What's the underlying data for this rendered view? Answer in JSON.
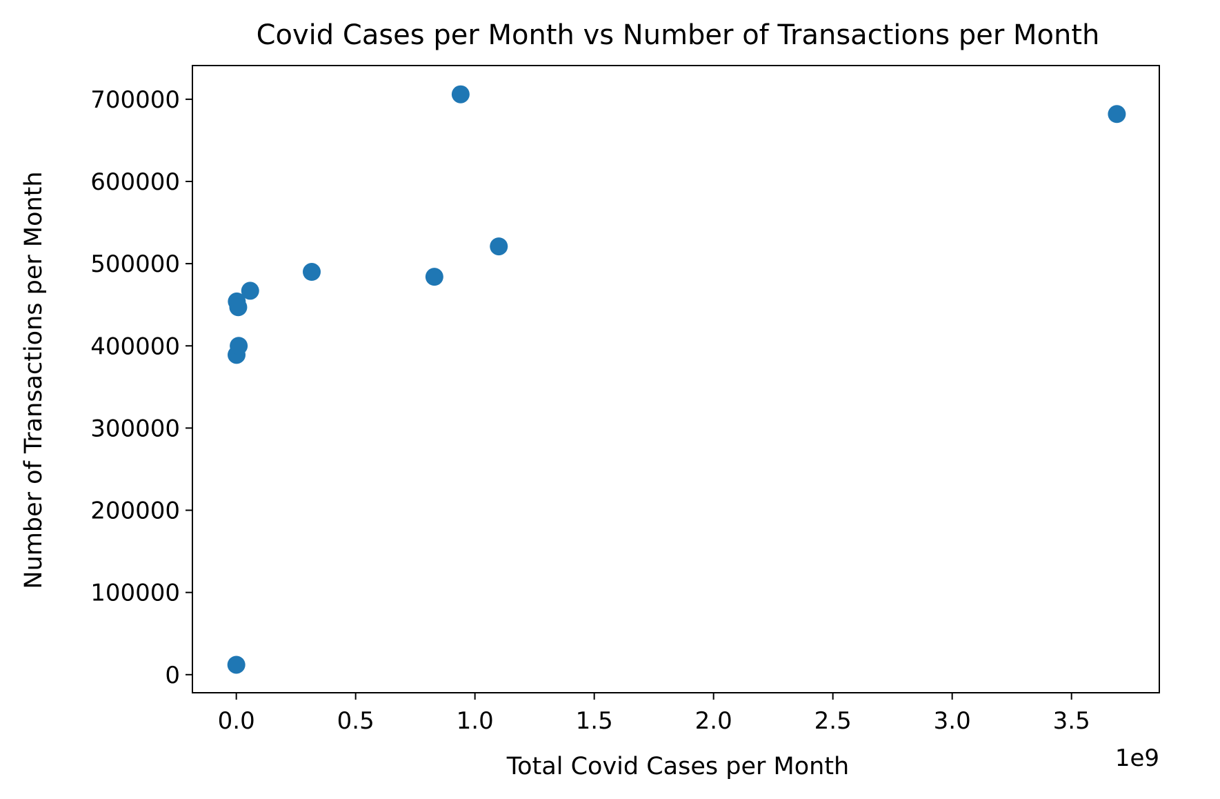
{
  "chart_data": {
    "type": "scatter",
    "title": "Covid Cases per Month vs Number of Transactions per Month",
    "xlabel": "Total Covid Cases per Month",
    "ylabel": "Number of Transactions per Month",
    "x_offset_label": "1e9",
    "x_scale": 1000000000,
    "xlim": [
      -0.184,
      3.868
    ],
    "ylim": [
      -22000,
      741000
    ],
    "x_ticks": [
      {
        "value": 0.0,
        "label": "0.0"
      },
      {
        "value": 0.5,
        "label": "0.5"
      },
      {
        "value": 1.0,
        "label": "1.0"
      },
      {
        "value": 1.5,
        "label": "1.5"
      },
      {
        "value": 2.0,
        "label": "2.0"
      },
      {
        "value": 2.5,
        "label": "2.5"
      },
      {
        "value": 3.0,
        "label": "3.0"
      },
      {
        "value": 3.5,
        "label": "3.5"
      }
    ],
    "y_ticks": [
      {
        "value": 0,
        "label": "0"
      },
      {
        "value": 100000,
        "label": "100000"
      },
      {
        "value": 200000,
        "label": "200000"
      },
      {
        "value": 300000,
        "label": "300000"
      },
      {
        "value": 400000,
        "label": "400000"
      },
      {
        "value": 500000,
        "label": "500000"
      },
      {
        "value": 600000,
        "label": "600000"
      },
      {
        "value": 700000,
        "label": "700000"
      }
    ],
    "grid": false,
    "marker_color": "#1f77b4",
    "points": [
      {
        "x": 0.0,
        "y": 12000
      },
      {
        "x": 0.001,
        "y": 389000
      },
      {
        "x": 0.002,
        "y": 454000
      },
      {
        "x": 0.008,
        "y": 447000
      },
      {
        "x": 0.01,
        "y": 400000
      },
      {
        "x": 0.058,
        "y": 467000
      },
      {
        "x": 0.316,
        "y": 490000
      },
      {
        "x": 0.83,
        "y": 484000
      },
      {
        "x": 0.94,
        "y": 706000
      },
      {
        "x": 1.1,
        "y": 521000
      },
      {
        "x": 3.69,
        "y": 682000
      }
    ]
  }
}
